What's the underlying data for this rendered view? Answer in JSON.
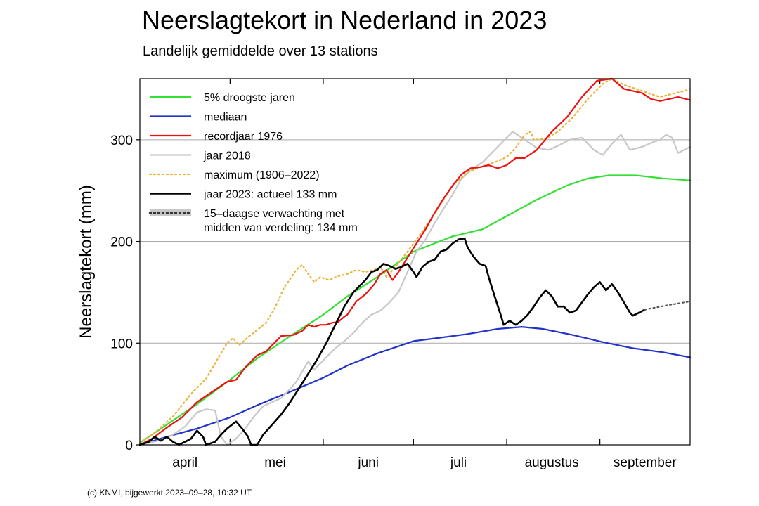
{
  "chart_data": {
    "type": "line",
    "title": "Neerslagtekort in Nederland in 2023",
    "subtitle": "Landelijk gemiddelde over 13 stations",
    "ylabel": "Neerslagtekort (mm)",
    "xlabel": "",
    "x_unit": "dag van het jaar",
    "xlim": [
      91,
      274
    ],
    "ylim": [
      0,
      360
    ],
    "y_ticks": [
      0,
      100,
      200,
      300
    ],
    "grid": "horizontal",
    "legend_position": "top-left",
    "month_labels": [
      {
        "label": "april",
        "day": 106
      },
      {
        "label": "mei",
        "day": 136
      },
      {
        "label": "juni",
        "day": 167
      },
      {
        "label": "juli",
        "day": 197
      },
      {
        "label": "augustus",
        "day": 228
      },
      {
        "label": "september",
        "day": 259
      }
    ],
    "month_boundaries": [
      121,
      152,
      182,
      213,
      244
    ],
    "series": [
      {
        "name": "5% droogste jaren",
        "color": "#33e033",
        "dash": "solid",
        "width": 2.2,
        "points": [
          [
            91,
            2
          ],
          [
            100,
            20
          ],
          [
            110,
            40
          ],
          [
            121,
            64
          ],
          [
            130,
            85
          ],
          [
            140,
            105
          ],
          [
            152,
            128
          ],
          [
            160,
            146
          ],
          [
            170,
            165
          ],
          [
            182,
            190
          ],
          [
            195,
            205
          ],
          [
            205,
            212
          ],
          [
            213,
            225
          ],
          [
            223,
            241
          ],
          [
            233,
            255
          ],
          [
            240,
            262
          ],
          [
            247,
            265
          ],
          [
            256,
            265
          ],
          [
            265,
            262
          ],
          [
            274,
            260
          ]
        ]
      },
      {
        "name": "mediaan",
        "color": "#2233cc",
        "dash": "solid",
        "width": 2.2,
        "points": [
          [
            91,
            0
          ],
          [
            100,
            8
          ],
          [
            110,
            16
          ],
          [
            121,
            27
          ],
          [
            130,
            39
          ],
          [
            140,
            51
          ],
          [
            152,
            66
          ],
          [
            160,
            78
          ],
          [
            170,
            90
          ],
          [
            182,
            102
          ],
          [
            190,
            105
          ],
          [
            200,
            109
          ],
          [
            210,
            114
          ],
          [
            218,
            116
          ],
          [
            225,
            114
          ],
          [
            235,
            108
          ],
          [
            245,
            101
          ],
          [
            255,
            95
          ],
          [
            265,
            91
          ],
          [
            274,
            86
          ]
        ]
      },
      {
        "name": "recordjaar 1976",
        "color": "#ee1111",
        "dash": "solid",
        "width": 2.2,
        "points": [
          [
            91,
            0
          ],
          [
            95,
            6
          ],
          [
            100,
            17
          ],
          [
            105,
            27
          ],
          [
            110,
            42
          ],
          [
            115,
            52
          ],
          [
            120,
            62
          ],
          [
            123,
            64
          ],
          [
            126,
            76
          ],
          [
            130,
            88
          ],
          [
            133,
            92
          ],
          [
            135,
            98
          ],
          [
            138,
            107
          ],
          [
            142,
            108
          ],
          [
            145,
            112
          ],
          [
            147,
            118
          ],
          [
            149,
            116
          ],
          [
            151,
            118
          ],
          [
            153,
            118
          ],
          [
            155,
            120
          ],
          [
            157,
            121
          ],
          [
            159,
            126
          ],
          [
            160,
            128
          ],
          [
            163,
            141
          ],
          [
            166,
            148
          ],
          [
            169,
            158
          ],
          [
            171,
            168
          ],
          [
            173,
            172
          ],
          [
            175,
            162
          ],
          [
            177,
            170
          ],
          [
            180,
            184
          ],
          [
            183,
            198
          ],
          [
            186,
            212
          ],
          [
            189,
            228
          ],
          [
            192,
            242
          ],
          [
            195,
            255
          ],
          [
            198,
            266
          ],
          [
            201,
            272
          ],
          [
            204,
            273
          ],
          [
            207,
            275
          ],
          [
            210,
            272
          ],
          [
            213,
            275
          ],
          [
            216,
            282
          ],
          [
            219,
            282
          ],
          [
            223,
            290
          ],
          [
            228,
            308
          ],
          [
            233,
            322
          ],
          [
            238,
            342
          ],
          [
            243,
            358
          ],
          [
            248,
            360
          ],
          [
            252,
            350
          ],
          [
            255,
            348
          ],
          [
            258,
            346
          ],
          [
            261,
            340
          ],
          [
            264,
            338
          ],
          [
            267,
            340
          ],
          [
            270,
            342
          ],
          [
            274,
            339
          ]
        ]
      },
      {
        "name": "jaar 2018",
        "color": "#c8c8c8",
        "dash": "solid",
        "width": 2.2,
        "points": [
          [
            91,
            0
          ],
          [
            97,
            4
          ],
          [
            102,
            10
          ],
          [
            106,
            18
          ],
          [
            110,
            32
          ],
          [
            113,
            35
          ],
          [
            116,
            34
          ],
          [
            118,
            8
          ],
          [
            120,
            0
          ],
          [
            123,
            6
          ],
          [
            126,
            16
          ],
          [
            129,
            28
          ],
          [
            132,
            38
          ],
          [
            135,
            42
          ],
          [
            138,
            46
          ],
          [
            141,
            55
          ],
          [
            143,
            62
          ],
          [
            145,
            72
          ],
          [
            147,
            82
          ],
          [
            149,
            74
          ],
          [
            151,
            80
          ],
          [
            153,
            86
          ],
          [
            156,
            95
          ],
          [
            159,
            102
          ],
          [
            162,
            110
          ],
          [
            165,
            120
          ],
          [
            168,
            128
          ],
          [
            171,
            132
          ],
          [
            174,
            140
          ],
          [
            177,
            150
          ],
          [
            180,
            170
          ],
          [
            183,
            190
          ],
          [
            186,
            202
          ],
          [
            189,
            218
          ],
          [
            192,
            232
          ],
          [
            195,
            246
          ],
          [
            198,
            262
          ],
          [
            201,
            270
          ],
          [
            205,
            278
          ],
          [
            209,
            290
          ],
          [
            213,
            302
          ],
          [
            215,
            308
          ],
          [
            216,
            306
          ],
          [
            219,
            300
          ],
          [
            223,
            292
          ],
          [
            227,
            290
          ],
          [
            230,
            294
          ],
          [
            234,
            300
          ],
          [
            238,
            302
          ],
          [
            242,
            290
          ],
          [
            245,
            285
          ],
          [
            248,
            296
          ],
          [
            251,
            305
          ],
          [
            254,
            290
          ],
          [
            258,
            293
          ],
          [
            262,
            298
          ],
          [
            264,
            300
          ],
          [
            266,
            305
          ],
          [
            268,
            302
          ],
          [
            270,
            287
          ],
          [
            274,
            293
          ]
        ]
      },
      {
        "name": "maximum (1906–2022)",
        "color": "#e8b53a",
        "dash": "dotted",
        "width": 2.2,
        "points": [
          [
            91,
            2
          ],
          [
            96,
            12
          ],
          [
            102,
            28
          ],
          [
            108,
            50
          ],
          [
            113,
            65
          ],
          [
            117,
            85
          ],
          [
            120,
            100
          ],
          [
            122,
            105
          ],
          [
            124,
            98
          ],
          [
            127,
            106
          ],
          [
            130,
            113
          ],
          [
            133,
            120
          ],
          [
            136,
            135
          ],
          [
            139,
            155
          ],
          [
            141,
            163
          ],
          [
            143,
            172
          ],
          [
            145,
            177
          ],
          [
            147,
            168
          ],
          [
            149,
            160
          ],
          [
            151,
            165
          ],
          [
            154,
            162
          ],
          [
            157,
            166
          ],
          [
            160,
            168
          ],
          [
            163,
            172
          ],
          [
            166,
            170
          ],
          [
            169,
            172
          ],
          [
            171,
            175
          ],
          [
            173,
            165
          ],
          [
            176,
            175
          ],
          [
            180,
            190
          ],
          [
            185,
            210
          ],
          [
            190,
            232
          ],
          [
            195,
            255
          ],
          [
            200,
            268
          ],
          [
            205,
            274
          ],
          [
            210,
            279
          ],
          [
            213,
            283
          ],
          [
            216,
            292
          ],
          [
            219,
            305
          ],
          [
            221,
            308
          ],
          [
            222,
            300
          ],
          [
            226,
            301
          ],
          [
            230,
            308
          ],
          [
            235,
            322
          ],
          [
            240,
            340
          ],
          [
            245,
            355
          ],
          [
            248,
            360
          ],
          [
            252,
            354
          ],
          [
            256,
            350
          ],
          [
            260,
            346
          ],
          [
            264,
            342
          ],
          [
            268,
            345
          ],
          [
            272,
            348
          ],
          [
            274,
            350
          ]
        ]
      },
      {
        "name": "jaar 2023: actueel 133 mm",
        "color": "#000000",
        "dash": "solid",
        "width": 2.6,
        "points": [
          [
            91,
            0
          ],
          [
            94,
            3
          ],
          [
            96,
            8
          ],
          [
            98,
            4
          ],
          [
            100,
            8
          ],
          [
            102,
            3
          ],
          [
            104,
            0
          ],
          [
            106,
            3
          ],
          [
            108,
            6
          ],
          [
            110,
            14
          ],
          [
            112,
            8
          ],
          [
            113,
            0
          ],
          [
            116,
            3
          ],
          [
            118,
            10
          ],
          [
            120,
            16
          ],
          [
            123,
            23
          ],
          [
            125,
            16
          ],
          [
            127,
            8
          ],
          [
            128,
            0
          ],
          [
            130,
            0
          ],
          [
            132,
            10
          ],
          [
            135,
            20
          ],
          [
            138,
            30
          ],
          [
            141,
            42
          ],
          [
            144,
            56
          ],
          [
            147,
            70
          ],
          [
            150,
            84
          ],
          [
            153,
            100
          ],
          [
            156,
            118
          ],
          [
            159,
            136
          ],
          [
            162,
            150
          ],
          [
            164,
            156
          ],
          [
            166,
            162
          ],
          [
            168,
            170
          ],
          [
            170,
            172
          ],
          [
            172,
            178
          ],
          [
            174,
            176
          ],
          [
            176,
            173
          ],
          [
            178,
            175
          ],
          [
            180,
            178
          ],
          [
            182,
            170
          ],
          [
            183,
            165
          ],
          [
            185,
            175
          ],
          [
            187,
            180
          ],
          [
            189,
            182
          ],
          [
            191,
            190
          ],
          [
            193,
            192
          ],
          [
            195,
            198
          ],
          [
            197,
            202
          ],
          [
            199,
            203
          ],
          [
            200,
            194
          ],
          [
            202,
            185
          ],
          [
            204,
            178
          ],
          [
            206,
            176
          ],
          [
            207,
            165
          ],
          [
            209,
            146
          ],
          [
            211,
            128
          ],
          [
            212,
            118
          ],
          [
            214,
            122
          ],
          [
            216,
            118
          ],
          [
            218,
            122
          ],
          [
            220,
            128
          ],
          [
            222,
            136
          ],
          [
            224,
            145
          ],
          [
            226,
            152
          ],
          [
            228,
            146
          ],
          [
            230,
            136
          ],
          [
            232,
            136
          ],
          [
            234,
            130
          ],
          [
            236,
            132
          ],
          [
            238,
            140
          ],
          [
            240,
            148
          ],
          [
            242,
            155
          ],
          [
            244,
            160
          ],
          [
            246,
            152
          ],
          [
            248,
            158
          ],
          [
            250,
            150
          ],
          [
            252,
            140
          ],
          [
            254,
            130
          ],
          [
            255,
            127
          ],
          [
            257,
            130
          ],
          [
            259,
            133
          ]
        ]
      },
      {
        "name": "15–daagse verwachting met\nmidden van verdeling: 134 mm",
        "color": "#555555",
        "dash": "dotted",
        "width": 2.2,
        "points": [
          [
            259,
            133
          ],
          [
            266,
            137
          ],
          [
            274,
            141
          ]
        ]
      }
    ]
  },
  "credit": "(c) KNMI, bijgewerkt 2023–09–28, 10:32 UT"
}
